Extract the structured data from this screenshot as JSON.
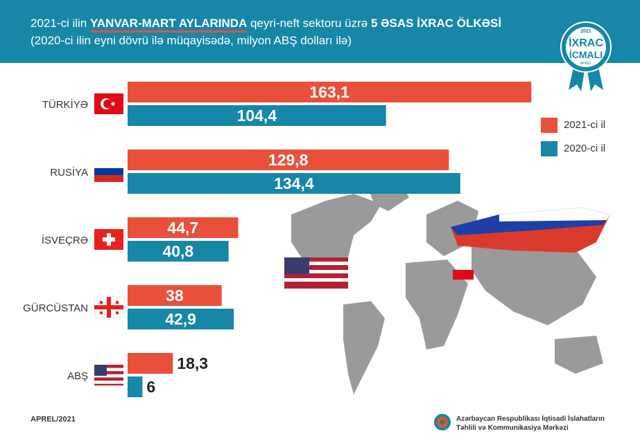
{
  "header": {
    "line1_a": "2021-ci ilin ",
    "line1_b": "YANVAR-MART AYLARINDA",
    "line1_c": " qeyri-neft sektoru üzrə ",
    "line1_d": "5 ƏSAS İXRAC ÖLKƏSİ",
    "line2": "(2020-ci ilin eyni dövrü ilə müqayisədə, milyon ABŞ dolları ilə)"
  },
  "badge": {
    "year": "2021",
    "title1": "İXRAC",
    "title2": "İCMALI",
    "month": "APREL"
  },
  "colors": {
    "header_bg": "#1687a7",
    "series_2021": "#e8503a",
    "series_2020": "#1687a7",
    "map": "#9a9a9a"
  },
  "chart_data": {
    "type": "bar",
    "orientation": "horizontal",
    "categories": [
      "TÜRKİYƏ",
      "RUSİYA",
      "İSVEÇRƏ",
      "GÜRCÜSTAN",
      "ABŞ"
    ],
    "series": [
      {
        "name": "2021-ci il",
        "values": [
          163.1,
          129.8,
          44.7,
          38,
          18.3
        ],
        "labels": [
          "163,1",
          "129,8",
          "44,7",
          "38",
          "18,3"
        ]
      },
      {
        "name": "2020-ci il",
        "values": [
          104.4,
          134.4,
          40.8,
          42.9,
          6
        ],
        "labels": [
          "104,4",
          "134,4",
          "40,8",
          "42,9",
          "6"
        ]
      }
    ],
    "legend_position": "right",
    "grid": false
  },
  "footer": {
    "date": "APREL/2021",
    "org_line1": "Azərbaycan Respublikası İqtisadi İslahatların",
    "org_line2": "Təhlili və Kommunikasiya Mərkəzi"
  }
}
